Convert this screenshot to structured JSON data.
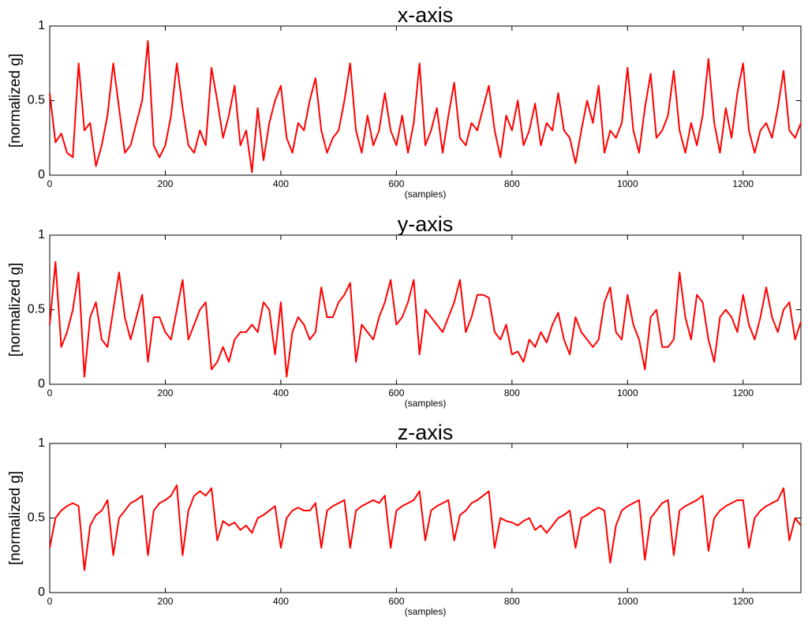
{
  "chart_data": [
    {
      "type": "line",
      "title": "x-axis",
      "ylabel": "[normalized g]",
      "xlabel": "(samples)",
      "color": "#ff0000",
      "xlim": [
        0,
        1300
      ],
      "ylim": [
        0,
        1
      ],
      "xticks": [
        0,
        200,
        400,
        600,
        800,
        1000,
        1200
      ],
      "yticks": [
        0,
        0.5,
        1
      ],
      "x": [
        0,
        10,
        20,
        30,
        40,
        50,
        60,
        70,
        80,
        90,
        100,
        110,
        120,
        130,
        140,
        150,
        160,
        170,
        180,
        190,
        200,
        210,
        220,
        230,
        240,
        250,
        260,
        270,
        280,
        290,
        300,
        310,
        320,
        330,
        340,
        350,
        360,
        370,
        380,
        390,
        400,
        410,
        420,
        430,
        440,
        450,
        460,
        470,
        480,
        490,
        500,
        510,
        520,
        530,
        540,
        550,
        560,
        570,
        580,
        590,
        600,
        610,
        620,
        630,
        640,
        650,
        660,
        670,
        680,
        690,
        700,
        710,
        720,
        730,
        740,
        750,
        760,
        770,
        780,
        790,
        800,
        810,
        820,
        830,
        840,
        850,
        860,
        870,
        880,
        890,
        900,
        910,
        920,
        930,
        940,
        950,
        960,
        970,
        980,
        990,
        1000,
        1010,
        1020,
        1030,
        1040,
        1050,
        1060,
        1070,
        1080,
        1090,
        1100,
        1110,
        1120,
        1130,
        1140,
        1150,
        1160,
        1170,
        1180,
        1190,
        1200,
        1210,
        1220,
        1230,
        1240,
        1250,
        1260,
        1270,
        1280,
        1290,
        1300
      ],
      "values": [
        0.55,
        0.22,
        0.28,
        0.15,
        0.12,
        0.75,
        0.3,
        0.35,
        0.06,
        0.2,
        0.4,
        0.75,
        0.45,
        0.15,
        0.2,
        0.35,
        0.5,
        0.9,
        0.2,
        0.12,
        0.2,
        0.4,
        0.75,
        0.45,
        0.2,
        0.15,
        0.3,
        0.2,
        0.72,
        0.5,
        0.25,
        0.4,
        0.6,
        0.2,
        0.3,
        0.02,
        0.45,
        0.1,
        0.35,
        0.5,
        0.6,
        0.25,
        0.15,
        0.35,
        0.3,
        0.5,
        0.65,
        0.3,
        0.15,
        0.25,
        0.3,
        0.5,
        0.75,
        0.3,
        0.15,
        0.4,
        0.2,
        0.3,
        0.55,
        0.3,
        0.2,
        0.4,
        0.15,
        0.35,
        0.75,
        0.2,
        0.3,
        0.45,
        0.15,
        0.4,
        0.62,
        0.25,
        0.2,
        0.35,
        0.3,
        0.45,
        0.6,
        0.3,
        0.12,
        0.4,
        0.3,
        0.5,
        0.2,
        0.3,
        0.48,
        0.2,
        0.35,
        0.3,
        0.55,
        0.3,
        0.25,
        0.08,
        0.3,
        0.5,
        0.35,
        0.6,
        0.15,
        0.3,
        0.25,
        0.35,
        0.72,
        0.3,
        0.15,
        0.45,
        0.68,
        0.25,
        0.3,
        0.4,
        0.7,
        0.3,
        0.15,
        0.35,
        0.2,
        0.4,
        0.78,
        0.35,
        0.15,
        0.45,
        0.25,
        0.55,
        0.75,
        0.3,
        0.15,
        0.3,
        0.35,
        0.25,
        0.45,
        0.7,
        0.3,
        0.25,
        0.35
      ]
    },
    {
      "type": "line",
      "title": "y-axis",
      "ylabel": "[normalized g]",
      "xlabel": "(samples)",
      "color": "#ff0000",
      "xlim": [
        0,
        1300
      ],
      "ylim": [
        0,
        1
      ],
      "xticks": [
        0,
        200,
        400,
        600,
        800,
        1000,
        1200
      ],
      "yticks": [
        0,
        0.5,
        1
      ],
      "x": [
        0,
        10,
        20,
        30,
        40,
        50,
        60,
        70,
        80,
        90,
        100,
        110,
        120,
        130,
        140,
        150,
        160,
        170,
        180,
        190,
        200,
        210,
        220,
        230,
        240,
        250,
        260,
        270,
        280,
        290,
        300,
        310,
        320,
        330,
        340,
        350,
        360,
        370,
        380,
        390,
        400,
        410,
        420,
        430,
        440,
        450,
        460,
        470,
        480,
        490,
        500,
        510,
        520,
        530,
        540,
        550,
        560,
        570,
        580,
        590,
        600,
        610,
        620,
        630,
        640,
        650,
        660,
        670,
        680,
        690,
        700,
        710,
        720,
        730,
        740,
        750,
        760,
        770,
        780,
        790,
        800,
        810,
        820,
        830,
        840,
        850,
        860,
        870,
        880,
        890,
        900,
        910,
        920,
        930,
        940,
        950,
        960,
        970,
        980,
        990,
        1000,
        1010,
        1020,
        1030,
        1040,
        1050,
        1060,
        1070,
        1080,
        1090,
        1100,
        1110,
        1120,
        1130,
        1140,
        1150,
        1160,
        1170,
        1180,
        1190,
        1200,
        1210,
        1220,
        1230,
        1240,
        1250,
        1260,
        1270,
        1280,
        1290,
        1300
      ],
      "values": [
        0.4,
        0.82,
        0.25,
        0.35,
        0.5,
        0.75,
        0.05,
        0.45,
        0.55,
        0.3,
        0.25,
        0.5,
        0.75,
        0.45,
        0.3,
        0.45,
        0.6,
        0.15,
        0.45,
        0.45,
        0.35,
        0.3,
        0.5,
        0.7,
        0.3,
        0.4,
        0.5,
        0.55,
        0.1,
        0.15,
        0.25,
        0.15,
        0.3,
        0.35,
        0.35,
        0.4,
        0.35,
        0.55,
        0.5,
        0.2,
        0.55,
        0.05,
        0.35,
        0.45,
        0.4,
        0.3,
        0.35,
        0.65,
        0.45,
        0.45,
        0.55,
        0.6,
        0.68,
        0.15,
        0.4,
        0.35,
        0.3,
        0.45,
        0.55,
        0.7,
        0.4,
        0.45,
        0.55,
        0.7,
        0.2,
        0.5,
        0.45,
        0.4,
        0.35,
        0.45,
        0.55,
        0.7,
        0.35,
        0.45,
        0.6,
        0.6,
        0.58,
        0.35,
        0.3,
        0.4,
        0.2,
        0.22,
        0.15,
        0.3,
        0.25,
        0.35,
        0.28,
        0.4,
        0.48,
        0.3,
        0.2,
        0.45,
        0.35,
        0.3,
        0.25,
        0.3,
        0.55,
        0.65,
        0.35,
        0.3,
        0.6,
        0.4,
        0.3,
        0.1,
        0.45,
        0.5,
        0.25,
        0.25,
        0.3,
        0.75,
        0.45,
        0.3,
        0.6,
        0.55,
        0.3,
        0.15,
        0.45,
        0.5,
        0.45,
        0.35,
        0.6,
        0.4,
        0.3,
        0.45,
        0.65,
        0.45,
        0.35,
        0.5,
        0.55,
        0.3,
        0.42
      ]
    },
    {
      "type": "line",
      "title": "z-axis",
      "ylabel": "[normalized g]",
      "xlabel": "(samples)",
      "color": "#ff0000",
      "xlim": [
        0,
        1300
      ],
      "ylim": [
        0,
        1
      ],
      "xticks": [
        0,
        200,
        400,
        600,
        800,
        1000,
        1200
      ],
      "yticks": [
        0,
        0.5,
        1
      ],
      "x": [
        0,
        10,
        20,
        30,
        40,
        50,
        60,
        70,
        80,
        90,
        100,
        110,
        120,
        130,
        140,
        150,
        160,
        170,
        180,
        190,
        200,
        210,
        220,
        230,
        240,
        250,
        260,
        270,
        280,
        290,
        300,
        310,
        320,
        330,
        340,
        350,
        360,
        370,
        380,
        390,
        400,
        410,
        420,
        430,
        440,
        450,
        460,
        470,
        480,
        490,
        500,
        510,
        520,
        530,
        540,
        550,
        560,
        570,
        580,
        590,
        600,
        610,
        620,
        630,
        640,
        650,
        660,
        670,
        680,
        690,
        700,
        710,
        720,
        730,
        740,
        750,
        760,
        770,
        780,
        790,
        800,
        810,
        820,
        830,
        840,
        850,
        860,
        870,
        880,
        890,
        900,
        910,
        920,
        930,
        940,
        950,
        960,
        970,
        980,
        990,
        1000,
        1010,
        1020,
        1030,
        1040,
        1050,
        1060,
        1070,
        1080,
        1090,
        1100,
        1110,
        1120,
        1130,
        1140,
        1150,
        1160,
        1170,
        1180,
        1190,
        1200,
        1210,
        1220,
        1230,
        1240,
        1250,
        1260,
        1270,
        1280,
        1290,
        1300
      ],
      "values": [
        0.3,
        0.5,
        0.55,
        0.58,
        0.6,
        0.58,
        0.15,
        0.45,
        0.52,
        0.55,
        0.62,
        0.25,
        0.5,
        0.55,
        0.6,
        0.62,
        0.65,
        0.25,
        0.55,
        0.6,
        0.62,
        0.65,
        0.72,
        0.25,
        0.55,
        0.65,
        0.68,
        0.65,
        0.7,
        0.35,
        0.48,
        0.45,
        0.47,
        0.42,
        0.45,
        0.4,
        0.5,
        0.52,
        0.55,
        0.58,
        0.3,
        0.5,
        0.55,
        0.57,
        0.55,
        0.55,
        0.6,
        0.3,
        0.55,
        0.58,
        0.6,
        0.62,
        0.3,
        0.55,
        0.58,
        0.6,
        0.62,
        0.6,
        0.65,
        0.3,
        0.55,
        0.58,
        0.6,
        0.62,
        0.68,
        0.35,
        0.55,
        0.58,
        0.6,
        0.62,
        0.35,
        0.52,
        0.55,
        0.6,
        0.62,
        0.65,
        0.68,
        0.3,
        0.5,
        0.48,
        0.47,
        0.45,
        0.48,
        0.5,
        0.42,
        0.45,
        0.4,
        0.45,
        0.5,
        0.52,
        0.55,
        0.3,
        0.5,
        0.52,
        0.55,
        0.57,
        0.55,
        0.2,
        0.45,
        0.55,
        0.58,
        0.6,
        0.62,
        0.22,
        0.5,
        0.55,
        0.6,
        0.62,
        0.25,
        0.55,
        0.58,
        0.6,
        0.62,
        0.65,
        0.28,
        0.5,
        0.55,
        0.58,
        0.6,
        0.62,
        0.62,
        0.3,
        0.5,
        0.55,
        0.58,
        0.6,
        0.62,
        0.7,
        0.35,
        0.5,
        0.45
      ]
    }
  ]
}
